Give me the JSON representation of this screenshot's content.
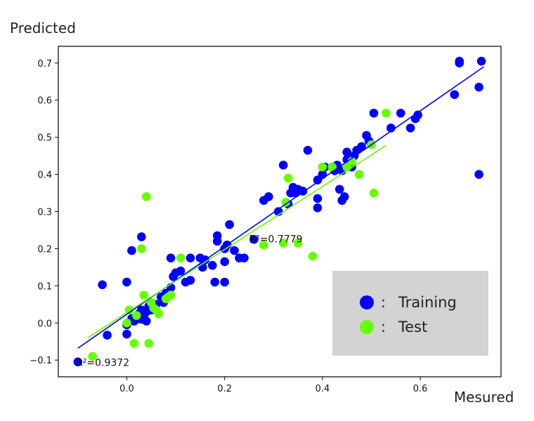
{
  "chart_data": {
    "type": "scatter",
    "xlabel": "Mesured",
    "ylabel": "Predicted",
    "xlim": [
      -0.14,
      0.765
    ],
    "ylim": [
      -0.145,
      0.745
    ],
    "xticks": [
      0.0,
      0.2,
      0.4,
      0.6
    ],
    "xtick_labels": [
      "0.0",
      "0.2",
      "0.4",
      "0.6"
    ],
    "yticks": [
      -0.1,
      0.0,
      0.1,
      0.2,
      0.3,
      0.4,
      0.5,
      0.6,
      0.7
    ],
    "ytick_labels": [
      "−0.1",
      "0.0",
      "0.1",
      "0.2",
      "0.3",
      "0.4",
      "0.5",
      "0.6",
      "0.7"
    ],
    "grid": false,
    "legend_position": "bottom-right",
    "legend": [
      {
        "name": "Training",
        "separator": ":",
        "color": "#0000ff"
      },
      {
        "name": "Test",
        "separator": ":",
        "color": "#66ff00"
      }
    ],
    "annotations": [
      {
        "text": "R²=0.9372",
        "x": -0.104,
        "y": -0.106
      },
      {
        "text": "R²=0.7779",
        "x": 0.25,
        "y": 0.226
      }
    ],
    "series": [
      {
        "name": "Training",
        "color": "#0000ff",
        "fit_line": {
          "x": [
            -0.1,
            0.73
          ],
          "y": [
            -0.068,
            0.69
          ]
        },
        "points": [
          [
            -0.1,
            -0.105
          ],
          [
            -0.05,
            0.103
          ],
          [
            -0.04,
            -0.033
          ],
          [
            0.0,
            0.11
          ],
          [
            0.0,
            -0.03
          ],
          [
            0.0,
            -0.005
          ],
          [
            0.01,
            0.195
          ],
          [
            0.01,
            0.012
          ],
          [
            0.015,
            0.005
          ],
          [
            0.02,
            0.02
          ],
          [
            0.02,
            0.01
          ],
          [
            0.025,
            0.025
          ],
          [
            0.03,
            0.035
          ],
          [
            0.03,
            0.232
          ],
          [
            0.03,
            0.01
          ],
          [
            0.035,
            0.02
          ],
          [
            0.04,
            0.005
          ],
          [
            0.04,
            0.03
          ],
          [
            0.045,
            0.045
          ],
          [
            0.05,
            0.035
          ],
          [
            0.06,
            0.05
          ],
          [
            0.07,
            0.07
          ],
          [
            0.075,
            0.055
          ],
          [
            0.08,
            0.08
          ],
          [
            0.09,
            0.095
          ],
          [
            0.09,
            0.175
          ],
          [
            0.095,
            0.125
          ],
          [
            0.1,
            0.135
          ],
          [
            0.11,
            0.14
          ],
          [
            0.12,
            0.11
          ],
          [
            0.13,
            0.175
          ],
          [
            0.13,
            0.115
          ],
          [
            0.15,
            0.175
          ],
          [
            0.155,
            0.15
          ],
          [
            0.16,
            0.17
          ],
          [
            0.175,
            0.155
          ],
          [
            0.18,
            0.11
          ],
          [
            0.185,
            0.235
          ],
          [
            0.185,
            0.22
          ],
          [
            0.2,
            0.2
          ],
          [
            0.2,
            0.165
          ],
          [
            0.205,
            0.21
          ],
          [
            0.2,
            0.11
          ],
          [
            0.21,
            0.265
          ],
          [
            0.22,
            0.195
          ],
          [
            0.23,
            0.175
          ],
          [
            0.24,
            0.175
          ],
          [
            0.26,
            0.225
          ],
          [
            0.28,
            0.33
          ],
          [
            0.29,
            0.34
          ],
          [
            0.31,
            0.3
          ],
          [
            0.32,
            0.425
          ],
          [
            0.33,
            0.32
          ],
          [
            0.335,
            0.35
          ],
          [
            0.34,
            0.365
          ],
          [
            0.345,
            0.35
          ],
          [
            0.35,
            0.36
          ],
          [
            0.36,
            0.355
          ],
          [
            0.37,
            0.465
          ],
          [
            0.39,
            0.31
          ],
          [
            0.39,
            0.335
          ],
          [
            0.39,
            0.385
          ],
          [
            0.4,
            0.4
          ],
          [
            0.405,
            0.42
          ],
          [
            0.42,
            0.42
          ],
          [
            0.425,
            0.41
          ],
          [
            0.43,
            0.425
          ],
          [
            0.435,
            0.36
          ],
          [
            0.44,
            0.33
          ],
          [
            0.44,
            0.41
          ],
          [
            0.445,
            0.34
          ],
          [
            0.45,
            0.44
          ],
          [
            0.45,
            0.46
          ],
          [
            0.455,
            0.43
          ],
          [
            0.46,
            0.42
          ],
          [
            0.465,
            0.45
          ],
          [
            0.47,
            0.465
          ],
          [
            0.48,
            0.475
          ],
          [
            0.49,
            0.505
          ],
          [
            0.495,
            0.49
          ],
          [
            0.505,
            0.565
          ],
          [
            0.54,
            0.525
          ],
          [
            0.56,
            0.565
          ],
          [
            0.58,
            0.525
          ],
          [
            0.59,
            0.55
          ],
          [
            0.595,
            0.56
          ],
          [
            0.67,
            0.615
          ],
          [
            0.68,
            0.7
          ],
          [
            0.68,
            0.705
          ],
          [
            0.72,
            0.635
          ],
          [
            0.725,
            0.705
          ],
          [
            0.72,
            0.4
          ]
        ]
      },
      {
        "name": "Test",
        "color": "#66ff00",
        "fit_line": {
          "x": [
            -0.08,
            0.53
          ],
          "y": [
            -0.04,
            0.478
          ]
        },
        "points": [
          [
            -0.07,
            -0.09
          ],
          [
            0.0,
            0.0
          ],
          [
            0.005,
            0.035
          ],
          [
            0.015,
            -0.055
          ],
          [
            0.02,
            0.02
          ],
          [
            0.03,
            0.2
          ],
          [
            0.035,
            0.075
          ],
          [
            0.04,
            0.34
          ],
          [
            0.045,
            -0.055
          ],
          [
            0.05,
            0.055
          ],
          [
            0.055,
            0.04
          ],
          [
            0.06,
            0.035
          ],
          [
            0.065,
            0.025
          ],
          [
            0.08,
            0.065
          ],
          [
            0.085,
            0.07
          ],
          [
            0.09,
            0.075
          ],
          [
            0.11,
            0.175
          ],
          [
            0.28,
            0.21
          ],
          [
            0.32,
            0.215
          ],
          [
            0.325,
            0.325
          ],
          [
            0.33,
            0.39
          ],
          [
            0.35,
            0.215
          ],
          [
            0.38,
            0.18
          ],
          [
            0.4,
            0.42
          ],
          [
            0.42,
            0.42
          ],
          [
            0.45,
            0.42
          ],
          [
            0.46,
            0.435
          ],
          [
            0.475,
            0.4
          ],
          [
            0.5,
            0.48
          ],
          [
            0.505,
            0.35
          ],
          [
            0.53,
            0.565
          ]
        ]
      }
    ]
  }
}
